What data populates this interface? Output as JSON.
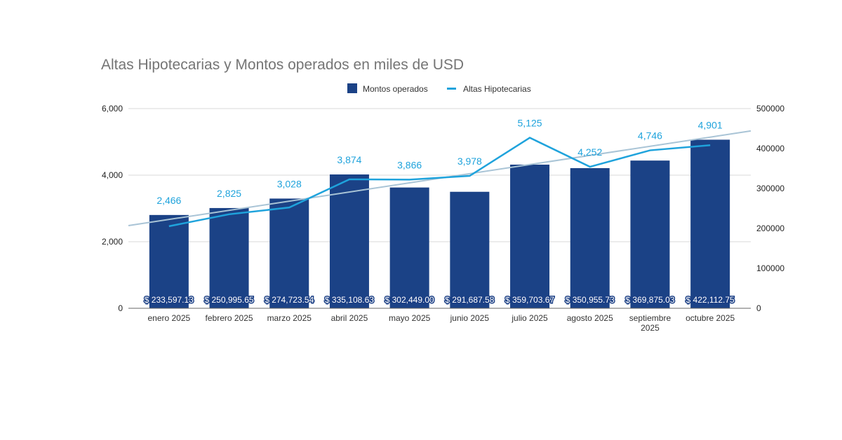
{
  "chart_data": {
    "type": "bar+line",
    "title": "Altas Hipotecarias y Montos operados en miles de USD",
    "legend_position": "top-right",
    "categories": [
      [
        "enero 2025"
      ],
      [
        "febrero 2025"
      ],
      [
        "marzo 2025"
      ],
      [
        "abril 2025"
      ],
      [
        "mayo 2025"
      ],
      [
        "junio 2025"
      ],
      [
        "julio 2025"
      ],
      [
        "agosto 2025"
      ],
      [
        "septiembre",
        "2025"
      ],
      [
        "octubre 2025"
      ]
    ],
    "series": [
      {
        "name": "Montos operados",
        "type": "bar",
        "axis": "right",
        "color": "#1b4286",
        "values": [
          233597.13,
          250995.65,
          274723.54,
          335108.63,
          302449.0,
          291687.58,
          359703.67,
          350955.73,
          369875.03,
          422112.75
        ],
        "labels": [
          "$ 233,597.13",
          "$ 250,995.65",
          "$ 274,723.54",
          "$ 335,108.63",
          "$ 302,449.00",
          "$ 291,687.58",
          "$ 359,703.67",
          "$ 350,955.73",
          "$ 369,875.03",
          "$ 422,112.75"
        ]
      },
      {
        "name": "Altas Hipotecarias",
        "type": "line",
        "axis": "left",
        "color": "#1fa3dc",
        "values": [
          2466,
          2825,
          3028,
          3874,
          3866,
          3978,
          5125,
          4252,
          4746,
          4901
        ],
        "labels": [
          "2,466",
          "2,825",
          "3,028",
          "3,874",
          "3,866",
          "3,978",
          "5,125",
          "4,252",
          "4,746",
          "4,901"
        ]
      }
    ],
    "trendline": {
      "of": "Altas Hipotecarias",
      "type": "linear",
      "color": "#a9c4d6"
    },
    "left_axis": {
      "range": [
        0,
        6000
      ],
      "ticks": [
        "0",
        "2,000",
        "4,000",
        "6,000"
      ]
    },
    "right_axis": {
      "range": [
        0,
        500000
      ],
      "ticks": [
        "0",
        "100000",
        "200000",
        "300000",
        "400000",
        "500000"
      ]
    },
    "grid": true
  }
}
